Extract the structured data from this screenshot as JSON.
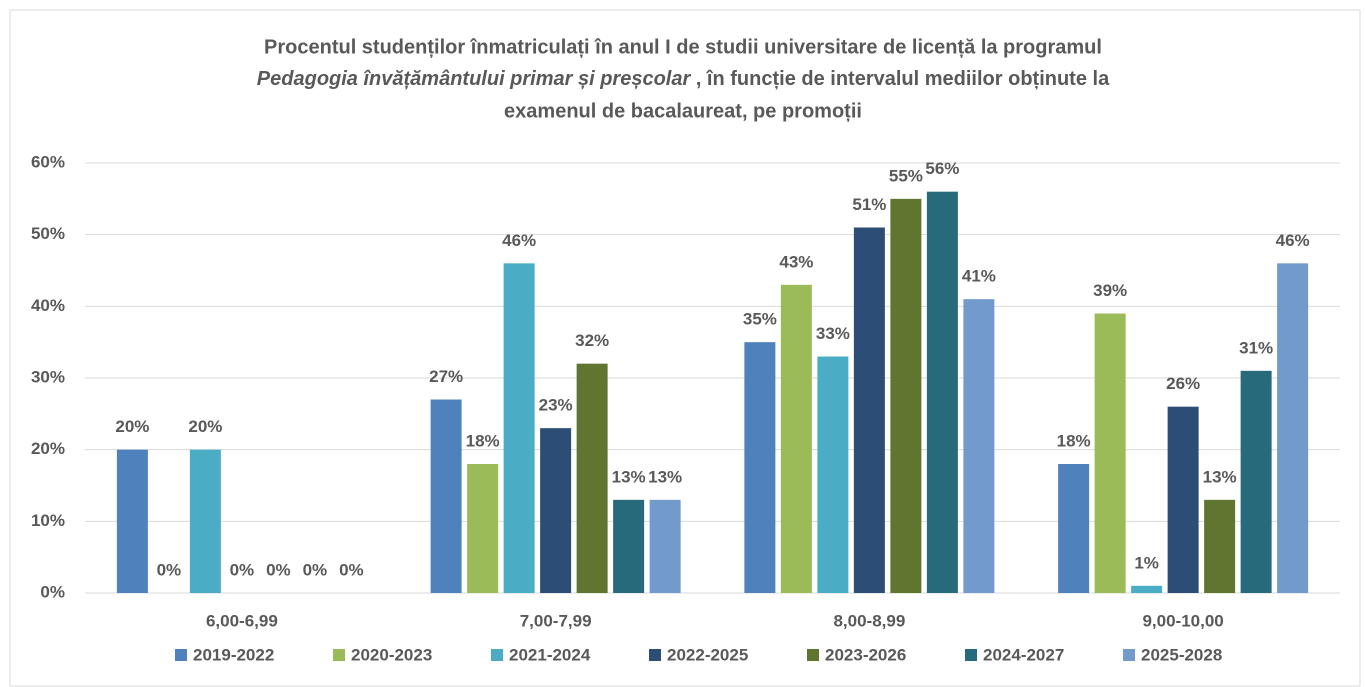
{
  "chart_data": {
    "type": "bar",
    "title": [
      "Procentul studenților înmatriculați în anul I de studii universitare de licență la programul",
      "Pedagogia învățământului primar și preșcolar",
      " , în funcție de intervalul mediilor obținute la",
      "examenul de bacalaureat, pe promoții"
    ],
    "categories": [
      "6,00-6,99",
      "7,00-7,99",
      "8,00-8,99",
      "9,00-10,00"
    ],
    "series": [
      {
        "name": "2019-2022",
        "color": "#4f81bd",
        "values": [
          20,
          27,
          35,
          18
        ],
        "value_labels": [
          "20%",
          "27%",
          "35%",
          "18%"
        ]
      },
      {
        "name": "2020-2023",
        "color": "#9bbb59",
        "values": [
          0,
          18,
          43,
          39
        ],
        "value_labels": [
          "0%",
          "18%",
          "43%",
          "39%"
        ]
      },
      {
        "name": "2021-2024",
        "color": "#4bacc6",
        "values": [
          20,
          46,
          33,
          1
        ],
        "value_labels": [
          "20%",
          "46%",
          "33%",
          "1%"
        ]
      },
      {
        "name": "2022-2025",
        "color": "#2c4d75",
        "values": [
          0,
          23,
          51,
          26
        ],
        "value_labels": [
          "0%",
          "23%",
          "51%",
          "26%"
        ]
      },
      {
        "name": "2023-2026",
        "color": "#5f7530",
        "values": [
          0,
          32,
          55,
          13
        ],
        "value_labels": [
          "0%",
          "32%",
          "55%",
          "13%"
        ]
      },
      {
        "name": "2024-2027",
        "color": "#276a7c",
        "values": [
          0,
          13,
          56,
          31
        ],
        "value_labels": [
          "0%",
          "13%",
          "56%",
          "31%"
        ]
      },
      {
        "name": "2025-2028",
        "color": "#729aca",
        "values": [
          0,
          13,
          41,
          46
        ],
        "value_labels": [
          "0%",
          "13%",
          "41%",
          "46%"
        ]
      }
    ],
    "ylim": [
      0,
      60
    ],
    "yticks": [
      {
        "value": 0,
        "label": "0%"
      },
      {
        "value": 10,
        "label": "10%"
      },
      {
        "value": 20,
        "label": "20%"
      },
      {
        "value": 30,
        "label": "30%"
      },
      {
        "value": 40,
        "label": "40%"
      },
      {
        "value": 50,
        "label": "50%"
      },
      {
        "value": 60,
        "label": "60%"
      }
    ],
    "grid": true,
    "legend": "bottom"
  }
}
